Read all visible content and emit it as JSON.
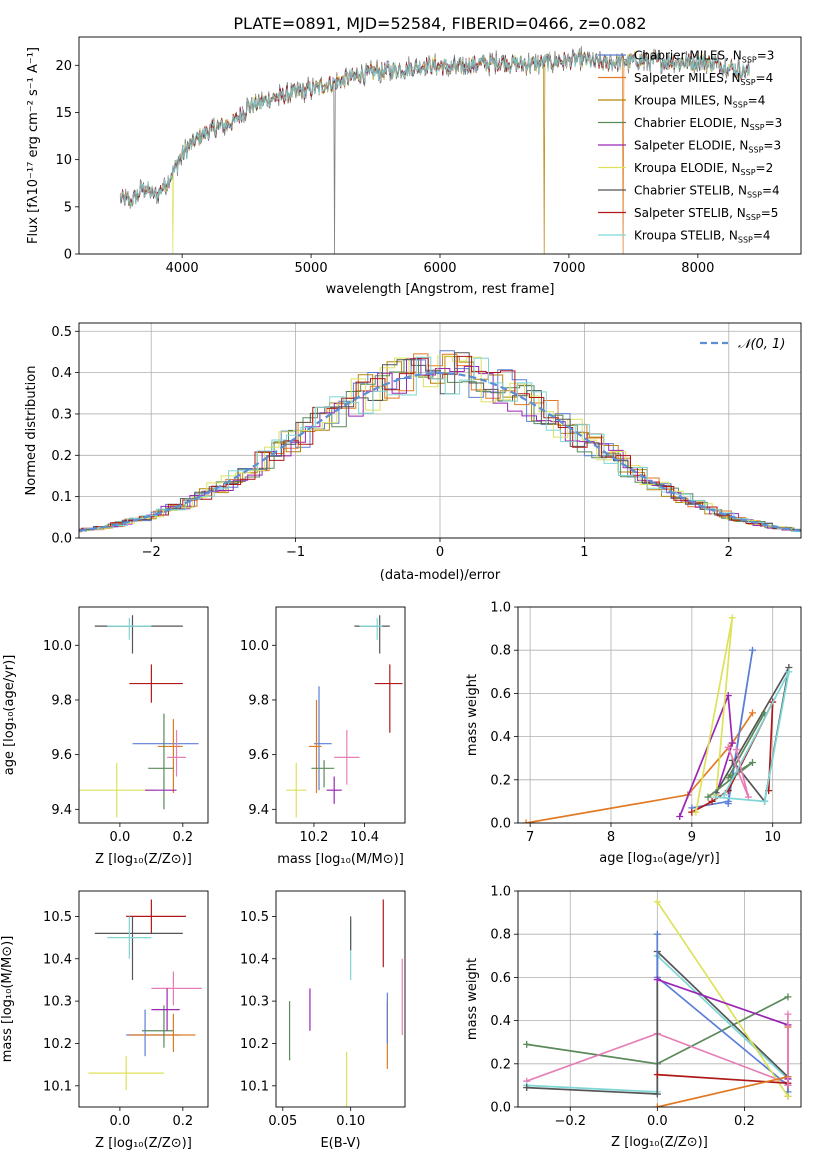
{
  "figure": {
    "title": "PLATE=0891, MJD=52584, FIBERID=0466, z=0.082"
  },
  "colors": {
    "Chabrier MILES": "#5b7fd6",
    "Salpeter MILES": "#e07a24",
    "Kroupa MILES": "#b8860b",
    "Chabrier ELODIE": "#5a8a5a",
    "Salpeter ELODIE": "#9b26b6",
    "Kroupa ELODIE": "#dde25a",
    "Chabrier STELIB": "#555555",
    "Salpeter STELIB": "#b01818",
    "Kroupa STELIB": "#7ed6d6",
    "extra_pink": "#e67fb8",
    "normal": "#5b8fd6"
  },
  "chart_data": [
    {
      "id": "spectrum",
      "type": "line",
      "title": "PLATE=0891, MJD=52584, FIBERID=0466, z=0.082",
      "xlabel": "wavelength [Angstrom, rest frame]",
      "ylabel": "Flux [fλ10⁻¹⁷ erg cm⁻² s⁻¹ A⁻¹]",
      "xlim": [
        3200,
        8800
      ],
      "ylim": [
        0,
        23
      ],
      "xticks": [
        4000,
        5000,
        6000,
        7000,
        8000
      ],
      "yticks": [
        0,
        5,
        10,
        15,
        20
      ],
      "legend_position": "right",
      "legend": [
        {
          "label": "Chabrier MILES, N",
          "sub": "SSP",
          "suffix": "=3",
          "color": "#5b7fd6"
        },
        {
          "label": "Salpeter MILES, N",
          "sub": "SSP",
          "suffix": "=4",
          "color": "#e07a24"
        },
        {
          "label": "Kroupa MILES, N",
          "sub": "SSP",
          "suffix": "=4",
          "color": "#b8860b"
        },
        {
          "label": "Chabrier ELODIE, N",
          "sub": "SSP",
          "suffix": "=3",
          "color": "#5a8a5a"
        },
        {
          "label": "Salpeter ELODIE, N",
          "sub": "SSP",
          "suffix": "=3",
          "color": "#9b26b6"
        },
        {
          "label": "Kroupa ELODIE, N",
          "sub": "SSP",
          "suffix": "=2",
          "color": "#dde25a"
        },
        {
          "label": "Chabrier STELIB, N",
          "sub": "SSP",
          "suffix": "=4",
          "color": "#555555"
        },
        {
          "label": "Salpeter STELIB, N",
          "sub": "SSP",
          "suffix": "=5",
          "color": "#b01818"
        },
        {
          "label": "Kroupa STELIB, N",
          "sub": "SSP",
          "suffix": "=4",
          "color": "#7ed6d6"
        }
      ],
      "spectrum_nodes": {
        "x": [
          3520,
          3600,
          3700,
          3800,
          3900,
          3950,
          4000,
          4100,
          4200,
          4300,
          4400,
          4500,
          4700,
          4900,
          5100,
          5300,
          5500,
          5700,
          5900,
          6100,
          6300,
          6500,
          6700,
          6900,
          7100,
          7300,
          7500,
          7800,
          8100,
          8400
        ],
        "y": [
          6,
          5.5,
          7,
          6.2,
          8,
          9.3,
          10.5,
          12,
          13,
          13.5,
          14,
          15.5,
          16.5,
          17.2,
          17.8,
          18.7,
          19.3,
          19.6,
          20,
          19.8,
          20.2,
          20.3,
          20.1,
          20.4,
          20.6,
          20.2,
          20.5,
          20.4,
          20.3,
          19.2
        ]
      }
    },
    {
      "id": "residuals",
      "type": "histogram",
      "xlabel": "(data-model)/error",
      "ylabel": "Normed distribution",
      "xlim": [
        -2.5,
        2.5
      ],
      "ylim": [
        0,
        0.52
      ],
      "xticks": [
        -2,
        -1,
        0,
        1,
        2
      ],
      "yticks": [
        0.0,
        0.1,
        0.2,
        0.3,
        0.4,
        0.5
      ],
      "legend_position": "top-right",
      "legend": [
        {
          "label": "𝒩(0, 1)",
          "color": "#5b8fd6",
          "style": "dashed"
        }
      ],
      "grid": true
    },
    {
      "id": "age_vs_Z",
      "type": "errorbar",
      "xlabel": "Z [log₁₀(Z/Z⊙)]",
      "ylabel": "age  [log₁₀(age/yr)]",
      "xlim": [
        -0.13,
        0.28
      ],
      "ylim": [
        9.35,
        10.14
      ],
      "xticks": [
        0.0,
        0.2
      ],
      "yticks": [
        9.4,
        9.6,
        9.8,
        10.0
      ],
      "points": [
        {
          "x": -0.01,
          "xerr": [
            0.12,
            0.12
          ],
          "y": 9.47,
          "yerr": [
            0.1,
            0.1
          ],
          "color": "#dde25a"
        },
        {
          "x": 0.08,
          "xerr": [
            0.04,
            0.17
          ],
          "y": 9.64,
          "yerr": [
            0.0,
            0.0
          ],
          "color": "#5b7fd6"
        },
        {
          "x": 0.17,
          "xerr": [
            0.05,
            0.03
          ],
          "y": 9.63,
          "yerr": [
            0.17,
            0.1
          ],
          "color": "#e07a24"
        },
        {
          "x": 0.18,
          "xerr": [
            0.03,
            0.03
          ],
          "y": 9.59,
          "yerr": [
            0.07,
            0.1
          ],
          "color": "#e67fb8"
        },
        {
          "x": 0.14,
          "xerr": [
            0.05,
            0.03
          ],
          "y": 9.55,
          "yerr": [
            0.15,
            0.2
          ],
          "color": "#5a8a5a"
        },
        {
          "x": 0.15,
          "xerr": [
            0.07,
            0.03
          ],
          "y": 9.47,
          "yerr": [
            0.0,
            0.0
          ],
          "color": "#9b26b6"
        },
        {
          "x": 0.1,
          "xerr": [
            0.07,
            0.1
          ],
          "y": 9.86,
          "yerr": [
            0.07,
            0.07
          ],
          "color": "#b01818"
        },
        {
          "x": 0.04,
          "xerr": [
            0.12,
            0.16
          ],
          "y": 10.07,
          "yerr": [
            0.1,
            0.04
          ],
          "color": "#555555"
        },
        {
          "x": 0.03,
          "xerr": [
            0.07,
            0.07
          ],
          "y": 10.07,
          "yerr": [
            0.05,
            0.03
          ],
          "color": "#7ed6d6"
        }
      ]
    },
    {
      "id": "age_vs_mass",
      "type": "errorbar",
      "xlabel": "mass [log₁₀(M/M⊙)]",
      "ylabel": "",
      "xlim": [
        10.05,
        10.56
      ],
      "ylim": [
        9.35,
        10.14
      ],
      "xticks": [
        10.2,
        10.4
      ],
      "yticks": [
        9.4,
        9.6,
        9.8,
        10.0
      ],
      "points": [
        {
          "x": 10.13,
          "xerr": [
            0.04,
            0.04
          ],
          "y": 9.47,
          "yerr": [
            0.1,
            0.1
          ],
          "color": "#dde25a"
        },
        {
          "x": 10.22,
          "xerr": [
            0.02,
            0.05
          ],
          "y": 9.64,
          "yerr": [
            0.17,
            0.21
          ],
          "color": "#5b7fd6"
        },
        {
          "x": 10.21,
          "xerr": [
            0.03,
            0.02
          ],
          "y": 9.63,
          "yerr": [
            0.17,
            0.17
          ],
          "color": "#e07a24"
        },
        {
          "x": 10.33,
          "xerr": [
            0.05,
            0.05
          ],
          "y": 9.59,
          "yerr": [
            0.1,
            0.1
          ],
          "color": "#e67fb8"
        },
        {
          "x": 10.24,
          "xerr": [
            0.05,
            0.04
          ],
          "y": 9.55,
          "yerr": [
            0.07,
            0.03
          ],
          "color": "#5a8a5a"
        },
        {
          "x": 10.28,
          "xerr": [
            0.03,
            0.03
          ],
          "y": 9.47,
          "yerr": [
            0.05,
            0.05
          ],
          "color": "#9b26b6"
        },
        {
          "x": 10.5,
          "xerr": [
            0.06,
            0.05
          ],
          "y": 9.86,
          "yerr": [
            0.18,
            0.07
          ],
          "color": "#b01818"
        },
        {
          "x": 10.46,
          "xerr": [
            0.1,
            0.04
          ],
          "y": 10.07,
          "yerr": [
            0.1,
            0.04
          ],
          "color": "#555555"
        },
        {
          "x": 10.45,
          "xerr": [
            0.07,
            0.02
          ],
          "y": 10.07,
          "yerr": [
            0.05,
            0.03
          ],
          "color": "#7ed6d6"
        }
      ]
    },
    {
      "id": "weight_vs_age",
      "type": "line",
      "xlabel": "age  [log₁₀(age/yr)]",
      "ylabel": "mass weight",
      "xlim": [
        6.85,
        10.35
      ],
      "ylim": [
        0,
        1.0
      ],
      "xticks": [
        7,
        8,
        9,
        10
      ],
      "yticks": [
        0.0,
        0.2,
        0.4,
        0.6,
        0.8,
        1.0
      ],
      "grid": true,
      "series": [
        {
          "color": "#e07a24",
          "x": [
            6.95,
            8.95,
            9.5,
            9.75
          ],
          "y": [
            0.0,
            0.13,
            0.37,
            0.51
          ]
        },
        {
          "color": "#5b7fd6",
          "x": [
            9.0,
            9.45,
            9.75,
            9.45
          ],
          "y": [
            0.07,
            0.1,
            0.8,
            0.09
          ]
        },
        {
          "color": "#b01818",
          "x": [
            9.0,
            9.25,
            9.45,
            10.0,
            9.95
          ],
          "y": [
            0.05,
            0.1,
            0.15,
            0.56,
            0.15
          ]
        },
        {
          "color": "#9b26b6",
          "x": [
            8.85,
            9.45,
            9.5,
            9.3
          ],
          "y": [
            0.03,
            0.59,
            0.37,
            0.13
          ]
        },
        {
          "color": "#dde25a",
          "x": [
            9.05,
            9.5,
            9.3
          ],
          "y": [
            0.05,
            0.95,
            0.13
          ]
        },
        {
          "color": "#555555",
          "x": [
            9.3,
            10.2,
            9.9,
            9.5
          ],
          "y": [
            0.14,
            0.72,
            0.1,
            0.29
          ]
        },
        {
          "color": "#5a8a5a",
          "x": [
            9.2,
            9.75,
            9.45,
            9.9
          ],
          "y": [
            0.12,
            0.28,
            0.21,
            0.51
          ]
        },
        {
          "color": "#e67fb8",
          "x": [
            9.45,
            9.7,
            9.55
          ],
          "y": [
            0.35,
            0.12,
            0.34
          ]
        },
        {
          "color": "#7ed6d6",
          "x": [
            9.3,
            9.9,
            10.2,
            9.4
          ],
          "y": [
            0.12,
            0.1,
            0.7,
            0.13
          ]
        }
      ]
    },
    {
      "id": "mass_vs_Z",
      "type": "errorbar",
      "xlabel": "Z [log₁₀(Z/Z⊙)]",
      "ylabel": "mass [log₁₀(M/M⊙)]",
      "xlim": [
        -0.13,
        0.28
      ],
      "ylim": [
        10.05,
        10.56
      ],
      "xticks": [
        0.0,
        0.2
      ],
      "yticks": [
        10.1,
        10.2,
        10.3,
        10.4,
        10.5
      ],
      "points": [
        {
          "x": 0.02,
          "xerr": [
            0.12,
            0.12
          ],
          "y": 10.13,
          "yerr": [
            0.04,
            0.04
          ],
          "color": "#dde25a"
        },
        {
          "x": 0.08,
          "xerr": [
            0.06,
            0.11
          ],
          "y": 10.22,
          "yerr": [
            0.05,
            0.06
          ],
          "color": "#5b7fd6"
        },
        {
          "x": 0.17,
          "xerr": [
            0.14,
            0.07
          ],
          "y": 10.22,
          "yerr": [
            0.04,
            0.05
          ],
          "color": "#e07a24"
        },
        {
          "x": 0.17,
          "xerr": [
            0.07,
            0.09
          ],
          "y": 10.33,
          "yerr": [
            0.04,
            0.04
          ],
          "color": "#e67fb8"
        },
        {
          "x": 0.14,
          "xerr": [
            0.07,
            0.03
          ],
          "y": 10.23,
          "yerr": [
            0.04,
            0.06
          ],
          "color": "#5a8a5a"
        },
        {
          "x": 0.15,
          "xerr": [
            0.05,
            0.04
          ],
          "y": 10.28,
          "yerr": [
            0.05,
            0.05
          ],
          "color": "#9b26b6"
        },
        {
          "x": 0.1,
          "xerr": [
            0.08,
            0.11
          ],
          "y": 10.5,
          "yerr": [
            0.04,
            0.04
          ],
          "color": "#b01818"
        },
        {
          "x": 0.04,
          "xerr": [
            0.12,
            0.16
          ],
          "y": 10.46,
          "yerr": [
            0.11,
            0.04
          ],
          "color": "#555555"
        },
        {
          "x": 0.03,
          "xerr": [
            0.07,
            0.07
          ],
          "y": 10.45,
          "yerr": [
            0.05,
            0.05
          ],
          "color": "#7ed6d6"
        }
      ]
    },
    {
      "id": "mass_vs_EBV",
      "type": "errorbar",
      "xlabel": "E(B-V)",
      "ylabel": "",
      "xlim": [
        0.045,
        0.14
      ],
      "ylim": [
        10.05,
        10.56
      ],
      "xticks": [
        0.05,
        0.1
      ],
      "yticks": [
        10.1,
        10.2,
        10.3,
        10.4,
        10.5
      ],
      "points": [
        {
          "x": 0.055,
          "xerr": [
            0,
            0
          ],
          "y": 10.23,
          "yerr": [
            0.07,
            0.07
          ],
          "color": "#5a8a5a"
        },
        {
          "x": 0.07,
          "xerr": [
            0,
            0
          ],
          "y": 10.28,
          "yerr": [
            0.05,
            0.05
          ],
          "color": "#9b26b6"
        },
        {
          "x": 0.097,
          "xerr": [
            0,
            0
          ],
          "y": 10.1,
          "yerr": [
            0.08,
            0.08
          ],
          "color": "#dde25a"
        },
        {
          "x": 0.1,
          "xerr": [
            0,
            0
          ],
          "y": 10.42,
          "yerr": [
            0.07,
            0.07
          ],
          "color": "#7ed6d6"
        },
        {
          "x": 0.1,
          "xerr": [
            0,
            0
          ],
          "y": 10.46,
          "yerr": [
            0.04,
            0.04
          ],
          "color": "#555555"
        },
        {
          "x": 0.124,
          "xerr": [
            0,
            0
          ],
          "y": 10.46,
          "yerr": [
            0.08,
            0.08
          ],
          "color": "#b01818"
        },
        {
          "x": 0.127,
          "xerr": [
            0,
            0
          ],
          "y": 10.22,
          "yerr": [
            0.08,
            0.08
          ],
          "color": "#e07a24"
        },
        {
          "x": 0.127,
          "xerr": [
            0,
            0
          ],
          "y": 10.26,
          "yerr": [
            0.06,
            0.06
          ],
          "color": "#5b7fd6"
        },
        {
          "x": 0.138,
          "xerr": [
            0,
            0
          ],
          "y": 10.31,
          "yerr": [
            0.09,
            0.09
          ],
          "color": "#e67fb8"
        }
      ]
    },
    {
      "id": "weight_vs_Z",
      "type": "line",
      "xlabel": "Z [log₁₀(Z/Z⊙)]",
      "ylabel": "mass weight",
      "xlim": [
        -0.32,
        0.33
      ],
      "ylim": [
        0,
        1.0
      ],
      "xticks": [
        -0.2,
        0.0,
        0.2
      ],
      "yticks": [
        0.0,
        0.2,
        0.4,
        0.6,
        0.8,
        1.0
      ],
      "grid": true,
      "series": [
        {
          "color": "#5a8a5a",
          "x": [
            -0.3,
            0.0,
            0.3
          ],
          "y": [
            0.29,
            0.2,
            0.51
          ]
        },
        {
          "color": "#e67fb8",
          "x": [
            -0.3,
            0.0,
            0.3
          ],
          "y": [
            0.12,
            0.34,
            0.11
          ]
        },
        {
          "color": "#7ed6d6",
          "x": [
            -0.3,
            0.0,
            0.0,
            0.3,
            0.3
          ],
          "y": [
            0.1,
            0.07,
            0.7,
            0.13,
            0.1
          ]
        },
        {
          "color": "#555555",
          "x": [
            -0.3,
            0.0,
            0.0,
            0.3,
            0.3
          ],
          "y": [
            0.09,
            0.06,
            0.72,
            0.14,
            0.05
          ]
        },
        {
          "color": "#5b7fd6",
          "x": [
            0.0,
            0.0,
            0.3,
            0.3
          ],
          "y": [
            0.8,
            0.6,
            0.1,
            0.07
          ]
        },
        {
          "color": "#dde25a",
          "x": [
            0.0,
            0.3
          ],
          "y": [
            0.95,
            0.05
          ]
        },
        {
          "color": "#9b26b6",
          "x": [
            0.0,
            0.3,
            0.3
          ],
          "y": [
            0.59,
            0.38,
            0.13
          ]
        },
        {
          "color": "#b01818",
          "x": [
            0.0,
            0.3,
            0.3
          ],
          "y": [
            0.15,
            0.11,
            0.1
          ]
        },
        {
          "color": "#e07a24",
          "x": [
            0.0,
            0.3,
            0.3
          ],
          "y": [
            0.0,
            0.14,
            0.37
          ]
        },
        {
          "color": "#e67fb8",
          "x": [
            0.3,
            0.3
          ],
          "y": [
            0.43,
            0.1
          ]
        }
      ]
    }
  ]
}
